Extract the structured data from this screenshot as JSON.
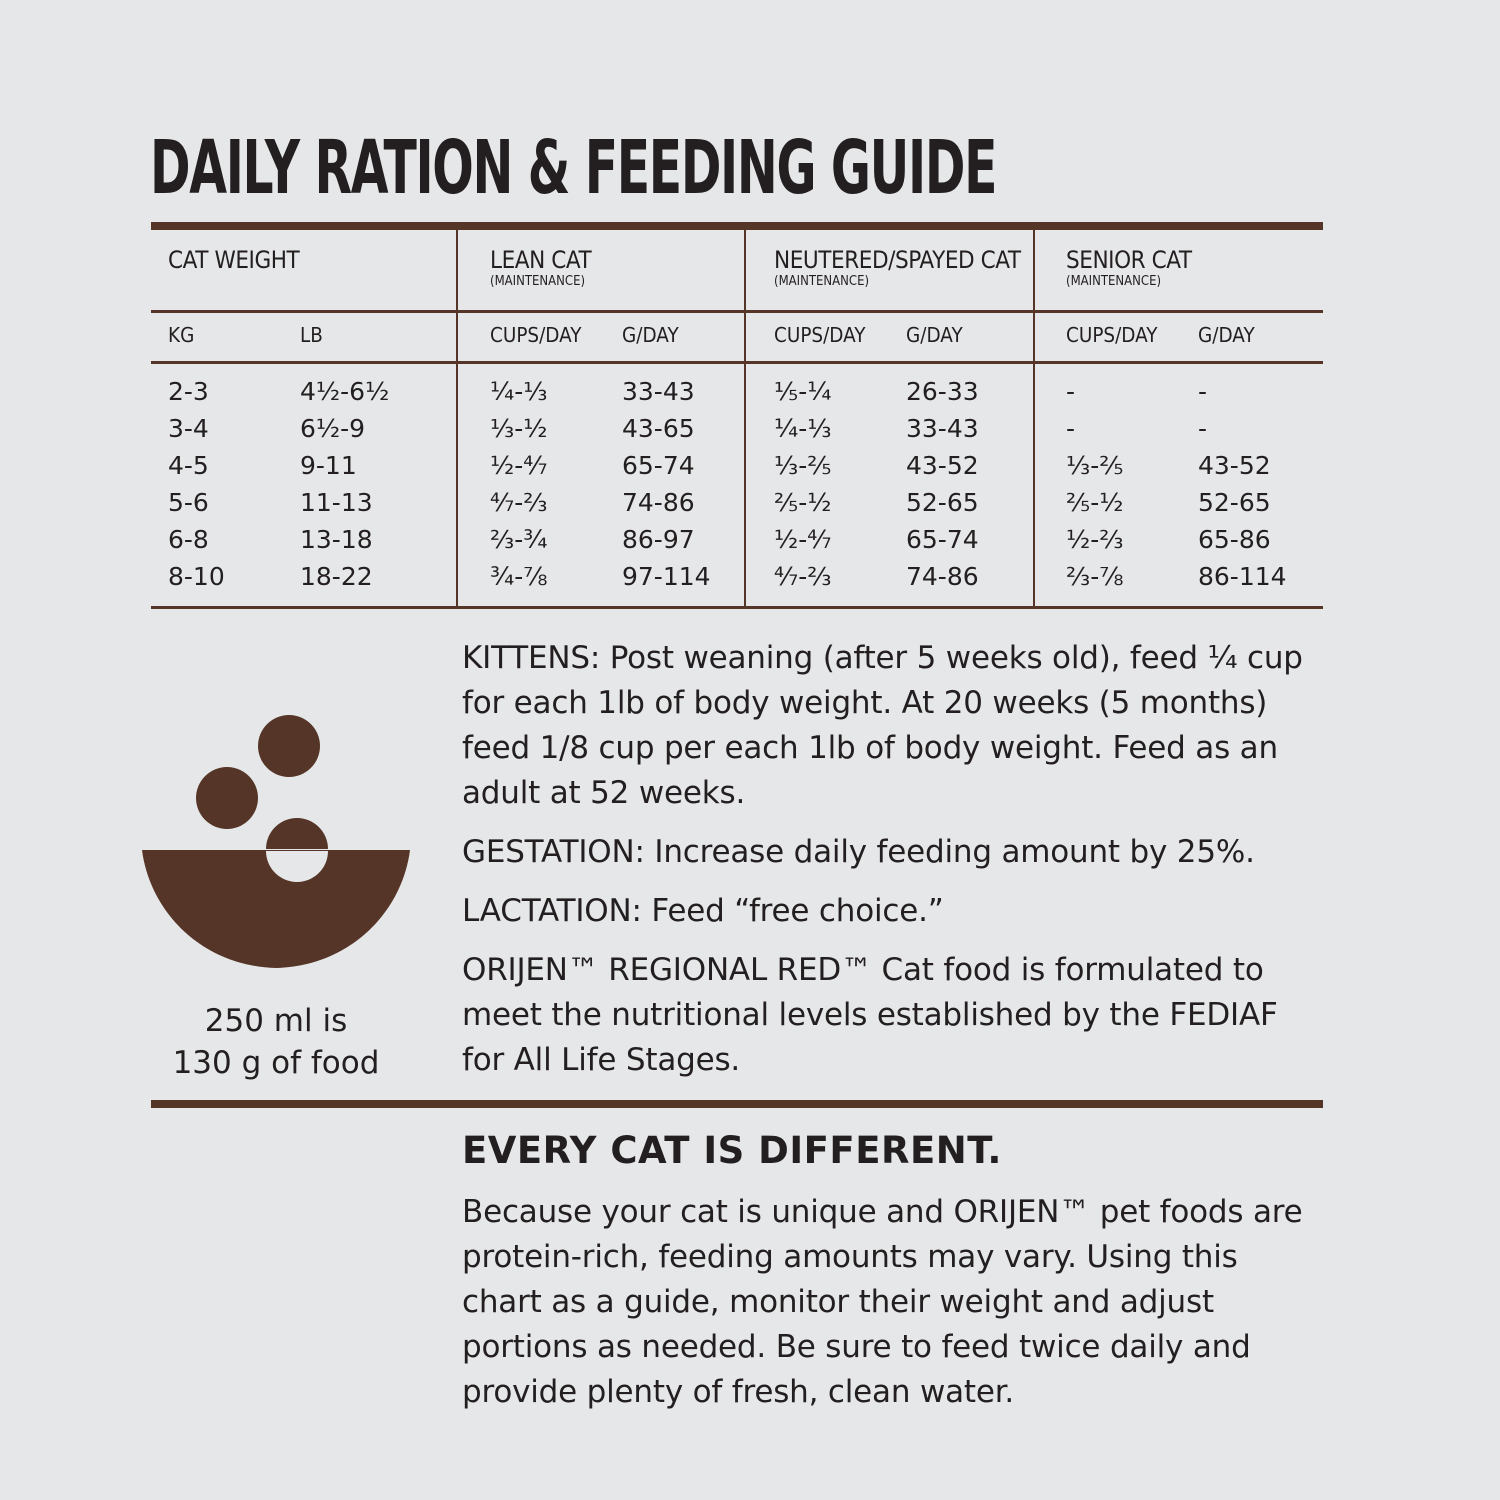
{
  "title": "DAILY RATION & FEEDING GUIDE",
  "colors": {
    "background": "#e6e7e8",
    "accent": "#553527",
    "text": "#231f20"
  },
  "table": {
    "headers": {
      "weight": "CAT WEIGHT",
      "lean": {
        "label": "LEAN CAT",
        "sub": "(MAINTENANCE)"
      },
      "neutered": {
        "label": "NEUTERED/SPAYED CAT",
        "sub": "(MAINTENANCE)"
      },
      "senior": {
        "label": "SENIOR CAT",
        "sub": "(MAINTENANCE)"
      }
    },
    "subheaders": {
      "kg": "KG",
      "lb": "LB",
      "cups": "CUPS/DAY",
      "grams": "G/DAY"
    },
    "rows": [
      {
        "kg": "2-3",
        "lb": "4½-6½",
        "lean_cups": "¼-⅓",
        "lean_g": "33-43",
        "neut_cups": "⅕-¼",
        "neut_g": "26-33",
        "senior_cups": "-",
        "senior_g": "-"
      },
      {
        "kg": "3-4",
        "lb": "6½-9",
        "lean_cups": "⅓-½",
        "lean_g": "43-65",
        "neut_cups": "¼-⅓",
        "neut_g": "33-43",
        "senior_cups": "-",
        "senior_g": "-"
      },
      {
        "kg": "4-5",
        "lb": "9-11",
        "lean_cups": "½-⁴⁄₇",
        "lean_g": "65-74",
        "neut_cups": "⅓-⅖",
        "neut_g": "43-52",
        "senior_cups": "⅓-⅖",
        "senior_g": "43-52"
      },
      {
        "kg": "5-6",
        "lb": "11-13",
        "lean_cups": "⁴⁄₇-⅔",
        "lean_g": "74-86",
        "neut_cups": "⅖-½",
        "neut_g": "52-65",
        "senior_cups": "⅖-½",
        "senior_g": "52-65"
      },
      {
        "kg": "6-8",
        "lb": "13-18",
        "lean_cups": "⅔-¾",
        "lean_g": "86-97",
        "neut_cups": "½-⁴⁄₇",
        "neut_g": "65-74",
        "senior_cups": "½-⅔",
        "senior_g": "65-86"
      },
      {
        "kg": "8-10",
        "lb": "18-22",
        "lean_cups": "¾-⅞",
        "lean_g": "97-114",
        "neut_cups": "⁴⁄₇-⅔",
        "neut_g": "74-86",
        "senior_cups": "⅔-⅞",
        "senior_g": "86-114"
      }
    ]
  },
  "bowl": {
    "icon": "food-bowl-icon",
    "caption_line1": "250 ml is",
    "caption_line2": "130 g of food"
  },
  "notes": {
    "kittens": "KITTENS: Post weaning (after 5 weeks old), feed ¼ cup for each 1lb of body weight. At 20 weeks (5 months) feed 1/8 cup per each 1lb of body weight. Feed as an adult at 52 weeks.",
    "gestation": "GESTATION: Increase daily feeding amount by 25%.",
    "lactation": "LACTATION: Feed “free choice.”",
    "formulation": "ORIJEN™ REGIONAL RED™ Cat food is formulated to meet the nutritional levels established by the FEDIAF for All Life Stages."
  },
  "every_cat": {
    "heading": "EVERY CAT IS DIFFERENT.",
    "body": "Because your cat is unique and ORIJEN™ pet foods are protein-rich, feeding amounts may vary. Using this chart as a guide, monitor their weight and adjust portions as needed. Be sure to feed twice daily and provide plenty of fresh, clean water."
  }
}
